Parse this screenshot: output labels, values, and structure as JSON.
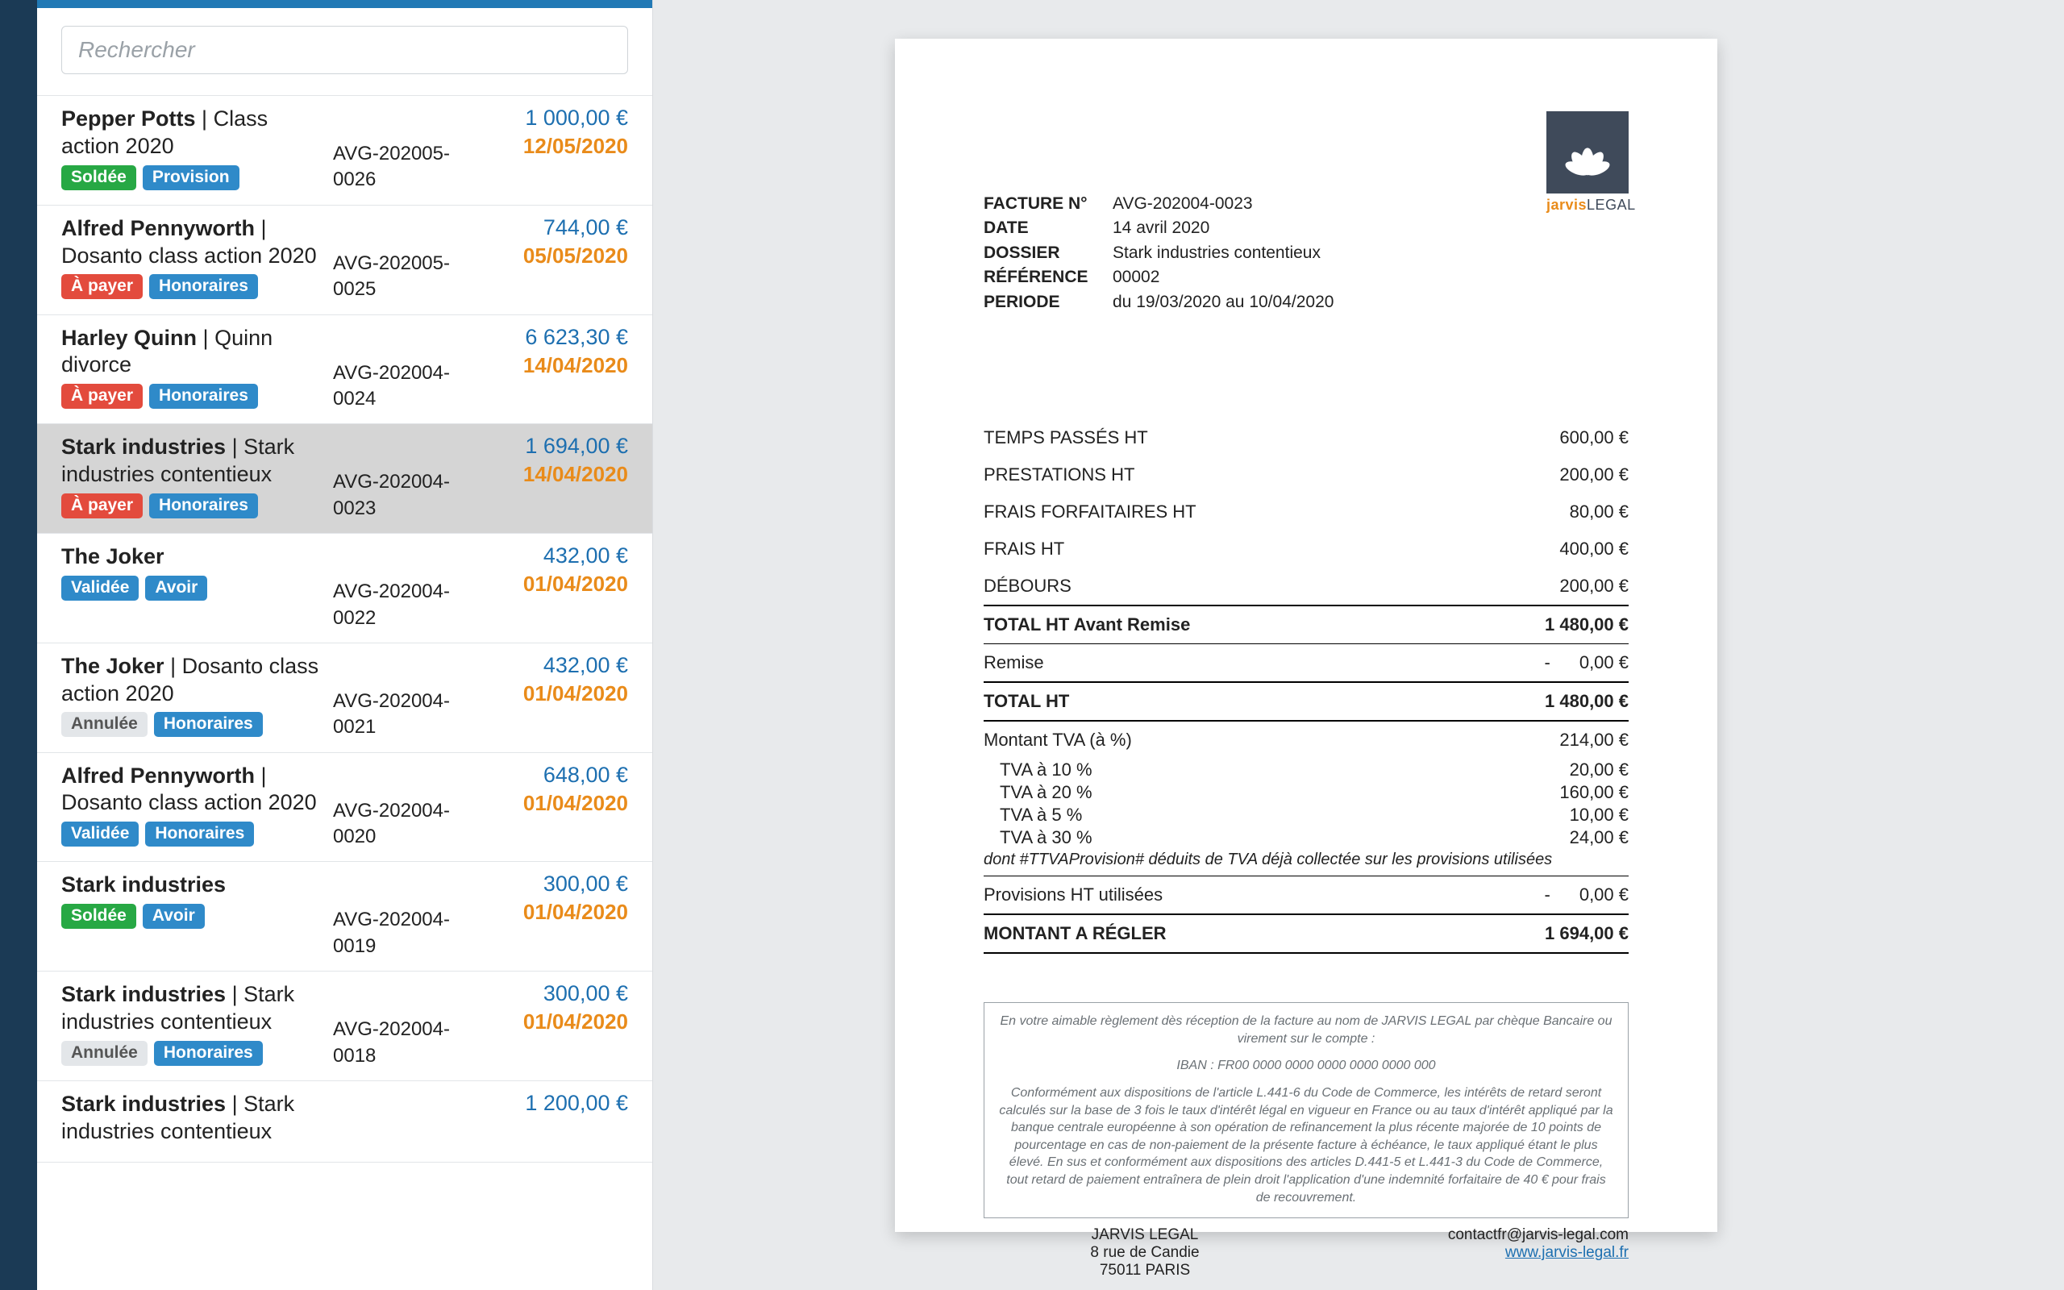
{
  "colors": {
    "accent": "#2179b5",
    "nav": "#1b3a55",
    "bg": "#e8eaec",
    "amount": "#1d6fb0",
    "date": "#e98b1a",
    "badge_green": "#27a844",
    "badge_blue": "#2f8ac9",
    "badge_red": "#e34b3d",
    "badge_grey": "#e3e6e9",
    "logo_box": "#3f4a5a"
  },
  "search": {
    "placeholder": "Rechercher"
  },
  "badge_labels": {
    "soldee": "Soldée",
    "a_payer": "À payer",
    "validee": "Validée",
    "annulee": "Annulée",
    "provision": "Provision",
    "honoraires": "Honoraires",
    "avoir": "Avoir"
  },
  "invoices": [
    {
      "client": "Pepper Potts",
      "matter": "Class action 2020",
      "status": "soldee",
      "type": "provision",
      "ref": "AVG-202005-0026",
      "amount": "1 000,00 €",
      "date": "12/05/2020",
      "selected": false
    },
    {
      "client": "Alfred Pennyworth",
      "matter": "Dosanto class action 2020",
      "status": "a_payer",
      "type": "honoraires",
      "ref": "AVG-202005-0025",
      "amount": "744,00 €",
      "date": "05/05/2020",
      "selected": false
    },
    {
      "client": "Harley Quinn",
      "matter": "Quinn divorce",
      "status": "a_payer",
      "type": "honoraires",
      "ref": "AVG-202004-0024",
      "amount": "6 623,30 €",
      "date": "14/04/2020",
      "selected": false
    },
    {
      "client": "Stark industries",
      "matter": "Stark industries contentieux",
      "status": "a_payer",
      "type": "honoraires",
      "ref": "AVG-202004-0023",
      "amount": "1 694,00 €",
      "date": "14/04/2020",
      "selected": true
    },
    {
      "client": "The Joker",
      "matter": "",
      "status": "validee",
      "type": "avoir",
      "ref": "AVG-202004-0022",
      "amount": "432,00 €",
      "date": "01/04/2020",
      "selected": false
    },
    {
      "client": "The Joker",
      "matter": "Dosanto class action 2020",
      "status": "annulee",
      "type": "honoraires",
      "ref": "AVG-202004-0021",
      "amount": "432,00 €",
      "date": "01/04/2020",
      "selected": false
    },
    {
      "client": "Alfred Pennyworth",
      "matter": "Dosanto class action 2020",
      "status": "validee",
      "type": "honoraires",
      "ref": "AVG-202004-0020",
      "amount": "648,00 €",
      "date": "01/04/2020",
      "selected": false
    },
    {
      "client": "Stark industries",
      "matter": "",
      "status": "soldee",
      "type": "avoir",
      "ref": "AVG-202004-0019",
      "amount": "300,00 €",
      "date": "01/04/2020",
      "selected": false
    },
    {
      "client": "Stark industries",
      "matter": "Stark industries contentieux",
      "status": "annulee",
      "type": "honoraires",
      "ref": "AVG-202004-0018",
      "amount": "300,00 €",
      "date": "01/04/2020",
      "selected": false
    },
    {
      "client": "Stark industries",
      "matter": "Stark industries contentieux",
      "status": "",
      "type": "",
      "ref": "",
      "amount": "1 200,00 €",
      "date": "",
      "selected": false
    }
  ],
  "doc": {
    "logo_name": "jarvis",
    "logo_name2": "LEGAL",
    "meta": {
      "l_number": "FACTURE N°",
      "number": "AVG-202004-0023",
      "l_date": "DATE",
      "date": "14 avril 2020",
      "l_dossier": "DOSSIER",
      "dossier": "Stark industries contentieux",
      "l_ref": "RÉFÉRENCE",
      "ref": "00002",
      "l_period": "PERIODE",
      "period": "du 19/03/2020 au 10/04/2020"
    },
    "lines": {
      "temps": {
        "label": "TEMPS PASSÉS HT",
        "value": "600,00 €"
      },
      "prest": {
        "label": "PRESTATIONS HT",
        "value": "200,00 €"
      },
      "forf": {
        "label": "FRAIS FORFAITAIRES HT",
        "value": "80,00 €"
      },
      "frais": {
        "label": "FRAIS HT",
        "value": "400,00 €"
      },
      "deb": {
        "label": "DÉBOURS",
        "value": "200,00 €"
      },
      "avant": {
        "label": "TOTAL HT Avant Remise",
        "value": "1 480,00 €"
      },
      "remise": {
        "label": "Remise",
        "value": "0,00 €",
        "dash": "-"
      },
      "total_ht": {
        "label": "TOTAL HT",
        "value": "1 480,00 €"
      },
      "tva_total": {
        "label": "Montant TVA (à   %)",
        "value": "214,00 €"
      },
      "tva": [
        {
          "label": "TVA à 10 %",
          "value": "20,00 €"
        },
        {
          "label": "TVA à 20 %",
          "value": "160,00 €"
        },
        {
          "label": "TVA à 5 %",
          "value": "10,00 €"
        },
        {
          "label": "TVA à 30 %",
          "value": "24,00 €"
        }
      ],
      "tva_note": "dont #TTVAProvision# déduits de TVA déjà collectée sur les provisions utilisées",
      "prov": {
        "label": "Provisions HT utilisées",
        "value": "0,00 €",
        "dash": "-"
      },
      "final": {
        "label": "MONTANT A RÉGLER",
        "value": "1 694,00 €"
      }
    },
    "footer": {
      "p1": "En votre aimable règlement dès réception de la facture au nom de JARVIS LEGAL par chèque Bancaire ou virement sur le compte :",
      "iban": "IBAN : FR00 0000 0000 0000 0000 0000 000",
      "p2": "Conformément aux dispositions de l'article L.441-6 du Code de Commerce, les intérêts de retard seront calculés sur la base de 3 fois le taux d'intérêt légal en vigueur en France ou au taux d'intérêt appliqué par la banque centrale européenne à son opération de refinancement la plus récente majorée de 10 points de pourcentage en cas de non-paiement de la présente facture à échéance, le taux appliqué étant le plus élevé. En sus et conformément aux dispositions des articles D.441-5 et L.441-3 du Code de Commerce, tout retard de paiement entraînera de plein droit l'application d'une indemnité forfaitaire de 40 € pour frais de recouvrement.",
      "company": "JARVIS LEGAL",
      "addr1": "8 rue de Candie",
      "addr2": "75011 PARIS",
      "email": "contactfr@jarvis-legal.com",
      "site": "www.jarvis-legal.fr"
    }
  }
}
